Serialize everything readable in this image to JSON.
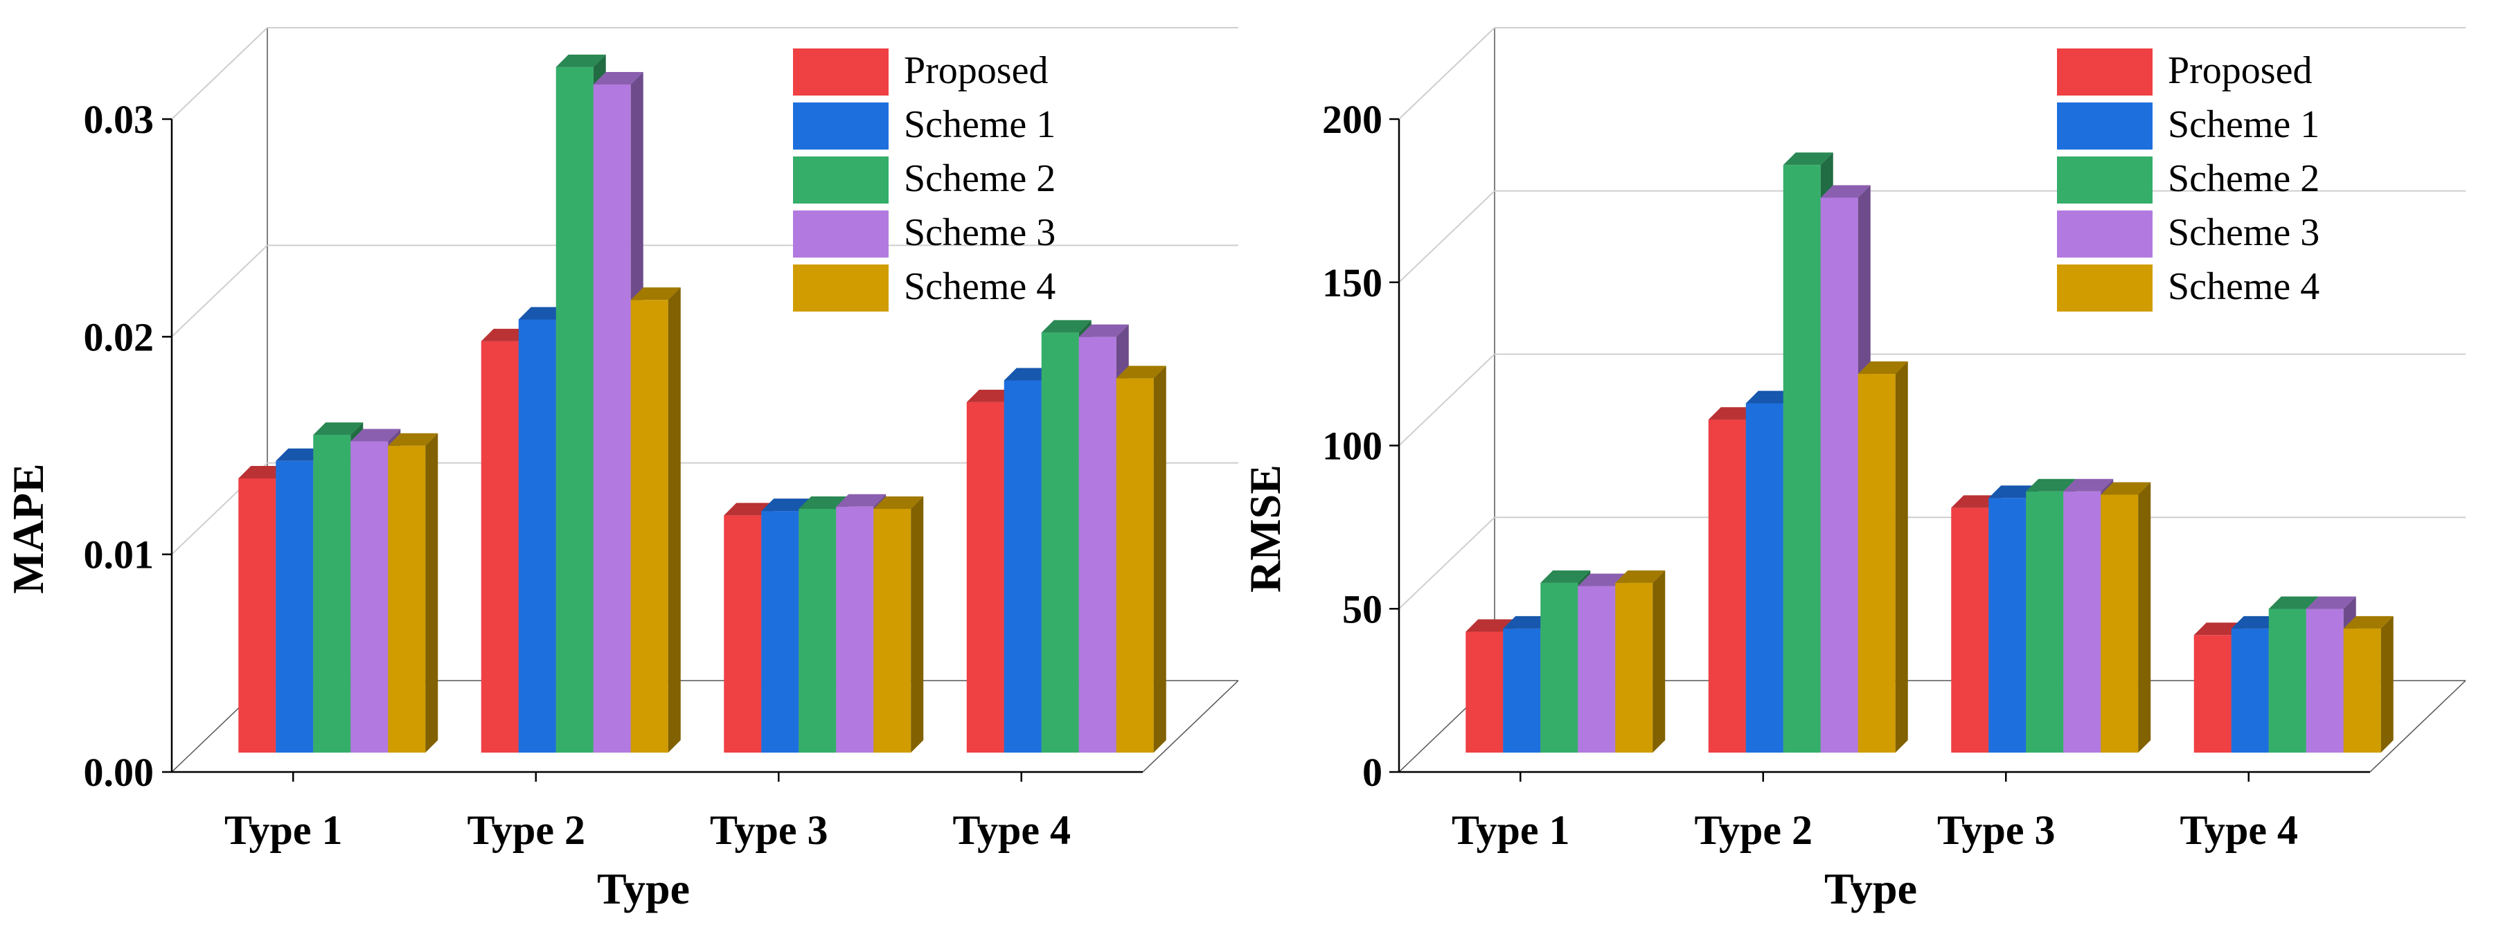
{
  "figure": {
    "panels": 2
  },
  "series_colors": {
    "Proposed": "#ef4043",
    "Scheme 1": "#1e6fde",
    "Scheme 2": "#35ae6a",
    "Scheme 3": "#b27ae0",
    "Scheme 4": "#d09c00"
  },
  "chart_data": [
    {
      "type": "bar",
      "style": "3d",
      "xlabel": "Type",
      "ylabel": "MAPE",
      "categories": [
        "Type 1",
        "Type 2",
        "Type 3",
        "Type 4"
      ],
      "ylim": [
        0,
        0.03
      ],
      "yticks": [
        0.0,
        0.01,
        0.02,
        0.03
      ],
      "ytick_labels": [
        "0.00",
        "0.01",
        "0.02",
        "0.03"
      ],
      "grid": true,
      "legend_position": "top-right",
      "series": [
        {
          "name": "Proposed",
          "values": [
            0.0126,
            0.0189,
            0.0109,
            0.0161
          ]
        },
        {
          "name": "Scheme 1",
          "values": [
            0.0134,
            0.0199,
            0.0111,
            0.0171
          ]
        },
        {
          "name": "Scheme 2",
          "values": [
            0.0146,
            0.0315,
            0.0112,
            0.0193
          ]
        },
        {
          "name": "Scheme 3",
          "values": [
            0.0143,
            0.0307,
            0.0113,
            0.0191
          ]
        },
        {
          "name": "Scheme 4",
          "values": [
            0.0141,
            0.0208,
            0.0112,
            0.0172
          ]
        }
      ]
    },
    {
      "type": "bar",
      "style": "3d",
      "xlabel": "Type",
      "ylabel": "RMSE",
      "categories": [
        "Type 1",
        "Type 2",
        "Type 3",
        "Type 4"
      ],
      "ylim": [
        0,
        200
      ],
      "yticks": [
        0,
        50,
        100,
        150,
        200
      ],
      "ytick_labels": [
        "0",
        "50",
        "100",
        "150",
        "200"
      ],
      "grid": true,
      "legend_position": "top-right",
      "series": [
        {
          "name": "Proposed",
          "values": [
            37,
            102,
            75,
            36
          ]
        },
        {
          "name": "Scheme 1",
          "values": [
            38,
            107,
            78,
            38
          ]
        },
        {
          "name": "Scheme 2",
          "values": [
            52,
            180,
            80,
            44
          ]
        },
        {
          "name": "Scheme 3",
          "values": [
            51,
            170,
            80,
            44
          ]
        },
        {
          "name": "Scheme 4",
          "values": [
            52,
            116,
            79,
            38
          ]
        }
      ]
    }
  ]
}
